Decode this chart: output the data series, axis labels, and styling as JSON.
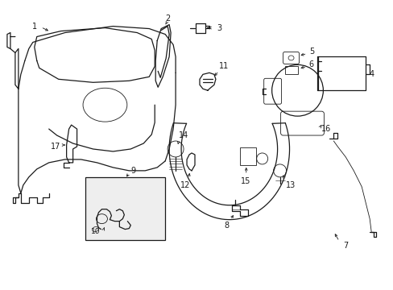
{
  "bg_color": "#ffffff",
  "line_color": "#1a1a1a",
  "lw": 0.9,
  "thin_lw": 0.6,
  "fs": 7.0,
  "figsize": [
    4.89,
    3.6
  ],
  "dpi": 100
}
